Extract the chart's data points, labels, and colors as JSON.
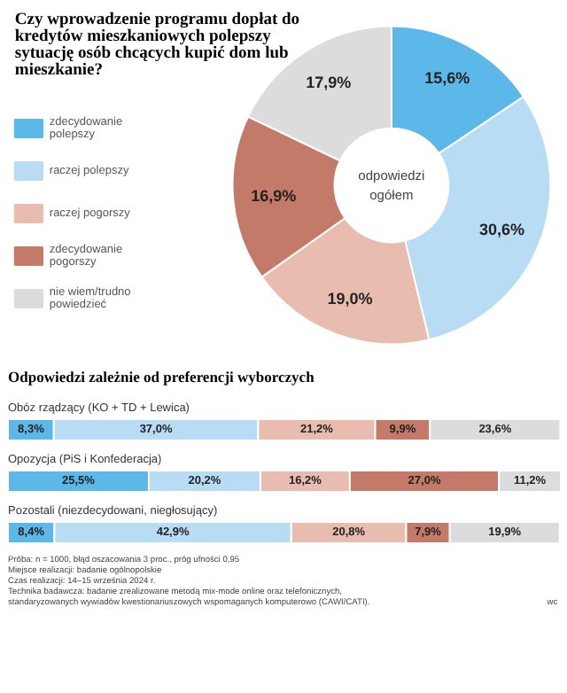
{
  "chart_data": [
    {
      "type": "donut",
      "title": "Czy wprowadzenie programu dopłat do kredytów mieszkaniowych polepszy sytuację osób chcących kupić dom lub mieszkanie?",
      "categories": [
        "zdecydowanie polepszy",
        "raczej polepszy",
        "raczej pogorszy",
        "zdecydowanie pogorszy",
        "nie wiem/trudno powiedzieć"
      ],
      "values": [
        15.6,
        30.6,
        19.0,
        16.9,
        17.9
      ],
      "colors": [
        "#5bb8e8",
        "#b9dcf5",
        "#e8bcae",
        "#c47a68",
        "#dcdcdc"
      ],
      "value_labels": [
        "15,6%",
        "30,6%",
        "19,0%",
        "16,9%",
        "17,9%"
      ],
      "annotations": [
        "odpowiedzi ogółem"
      ],
      "legend": "left"
    },
    {
      "type": "bar",
      "orientation": "horizontal",
      "stacked": true,
      "title": "Odpowiedzi zależnie od preferencji wyborczych",
      "categories": [
        "Obóz rządzący (KO + TD + Lewica)",
        "Opozycja (PiS i Konfederacja)",
        "Pozostali (niezdecydowani, niegłosujący)"
      ],
      "series": [
        {
          "color": "#5bb8e8",
          "values": [
            8.3,
            25.5,
            8.4
          ],
          "value_labels": [
            "8,3%",
            "25,5%",
            "8,4%"
          ]
        },
        {
          "color": "#b9dcf5",
          "values": [
            37.0,
            20.2,
            42.9
          ],
          "value_labels": [
            "37,0%",
            "20,2%",
            "42,9%"
          ]
        },
        {
          "color": "#e8bcae",
          "values": [
            21.2,
            16.2,
            20.8
          ],
          "value_labels": [
            "21,2%",
            "16,2%",
            "20,8%"
          ]
        },
        {
          "color": "#c47a68",
          "values": [
            9.9,
            27.0,
            7.9
          ],
          "value_labels": [
            "9,9%",
            "27,0%",
            "7,9%"
          ]
        },
        {
          "color": "#dcdcdc",
          "values": [
            23.6,
            11.2,
            19.9
          ],
          "value_labels": [
            "23,6%",
            "11,2%",
            "19,9%"
          ]
        }
      ],
      "annotations": [
        "Próba: n = 1000, błąd oszacowania 3 proc., próg ufności 0,95",
        "Miejsce realizacji: badanie ogólnopolskie",
        "Czas realizacji: 14–15 września 2024 r.",
        "Technika badawcza: badanie zrealizowane metodą mix-mode online oraz telefonicznych, standaryzowanych wywiadów kwestionariuszowych wspomaganych komputerowo (CAWI/CATI).",
        "wc"
      ]
    }
  ]
}
